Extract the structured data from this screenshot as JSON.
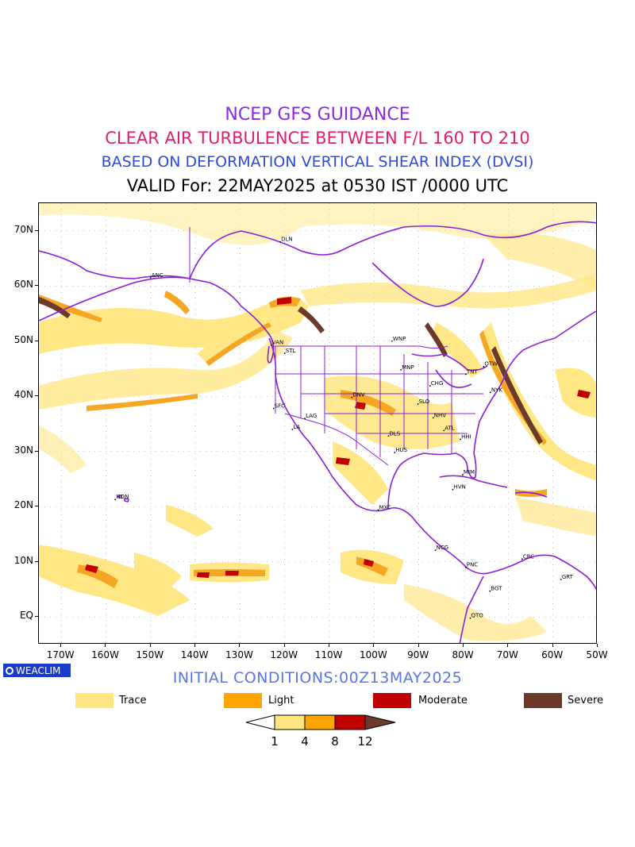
{
  "header": {
    "line1": "NCEP GFS GUIDANCE",
    "line2": "CLEAR AIR TURBULENCE BETWEEN F/L 160 TO 210",
    "line3": "BASED ON DEFORMATION VERTICAL SHEAR INDEX (DVSI)",
    "line4": "VALID For: 22MAY2025 at 0530 IST /0000 UTC"
  },
  "map": {
    "lat_labels": [
      "70N",
      "60N",
      "50N",
      "40N",
      "30N",
      "20N",
      "10N",
      "EQ"
    ],
    "lon_labels": [
      "170W",
      "160W",
      "150W",
      "140W",
      "130W",
      "120W",
      "110W",
      "100W",
      "90W",
      "80W",
      "70W",
      "60W",
      "50W"
    ],
    "lon_range": [
      -175,
      -50
    ],
    "lat_range": [
      -5,
      75
    ],
    "cities": [
      {
        "name": "ANC",
        "lon": -150,
        "lat": 61.5
      },
      {
        "name": "DLN",
        "lon": -121,
        "lat": 68.0
      },
      {
        "name": "VAN",
        "lon": -123,
        "lat": 49.3
      },
      {
        "name": "STL",
        "lon": -120,
        "lat": 47.8
      },
      {
        "name": "WNP",
        "lon": -96,
        "lat": 50.0
      },
      {
        "name": "MNP",
        "lon": -94,
        "lat": 44.8
      },
      {
        "name": "CHG",
        "lon": -87.5,
        "lat": 41.9
      },
      {
        "name": "TNT",
        "lon": -79.5,
        "lat": 44.0
      },
      {
        "name": "OTW",
        "lon": -75.5,
        "lat": 45.4
      },
      {
        "name": "NYK",
        "lon": -74,
        "lat": 40.7
      },
      {
        "name": "DNV",
        "lon": -105,
        "lat": 39.8
      },
      {
        "name": "SFC",
        "lon": -122.5,
        "lat": 37.8
      },
      {
        "name": "LAG",
        "lon": -115.5,
        "lat": 36.0
      },
      {
        "name": "LA",
        "lon": -118.3,
        "lat": 34.0
      },
      {
        "name": "SLO",
        "lon": -90.2,
        "lat": 38.6
      },
      {
        "name": "NHV",
        "lon": -86.8,
        "lat": 36.1
      },
      {
        "name": "ATL",
        "lon": -84.4,
        "lat": 33.8
      },
      {
        "name": "HHI",
        "lon": -80.7,
        "lat": 32.2
      },
      {
        "name": "DLS",
        "lon": -96.8,
        "lat": 32.8
      },
      {
        "name": "HUS",
        "lon": -95.4,
        "lat": 29.8
      },
      {
        "name": "MIM",
        "lon": -80.2,
        "lat": 25.8
      },
      {
        "name": "HVN",
        "lon": -82.4,
        "lat": 23.1
      },
      {
        "name": "HON",
        "lon": -157.9,
        "lat": 21.3
      },
      {
        "name": "MXC",
        "lon": -99.1,
        "lat": 19.4
      },
      {
        "name": "NCG",
        "lon": -86.3,
        "lat": 12.1
      },
      {
        "name": "PNC",
        "lon": -79.5,
        "lat": 9.0
      },
      {
        "name": "CRC",
        "lon": -66.9,
        "lat": 10.5
      },
      {
        "name": "BGT",
        "lon": -74.1,
        "lat": 4.7
      },
      {
        "name": "GRT",
        "lon": -58.2,
        "lat": 6.8
      },
      {
        "name": "QTO",
        "lon": -78.5,
        "lat": -0.2
      }
    ]
  },
  "branding": {
    "logo_text": "WEACLIM"
  },
  "footer": {
    "initial_conditions": "INITIAL CONDITIONS:00Z13MAY2025"
  },
  "legend": {
    "items": [
      {
        "label": "Trace",
        "color": "#ffe680"
      },
      {
        "label": "Light",
        "color": "#ffa500"
      },
      {
        "label": "Moderate",
        "color": "#c00000"
      },
      {
        "label": "Severe",
        "color": "#6b3a2a"
      }
    ],
    "colorbar_ticks": [
      "1",
      "4",
      "8",
      "12"
    ],
    "colorbar_colors": [
      "#ffffff",
      "#ffe680",
      "#ffa500",
      "#c00000",
      "#6b3a2a"
    ]
  },
  "colors": {
    "coastline": "#8b1fd6",
    "trace": "#ffe680",
    "light": "#f5a623",
    "moderate": "#c00000",
    "severe": "#6b3a2a"
  }
}
